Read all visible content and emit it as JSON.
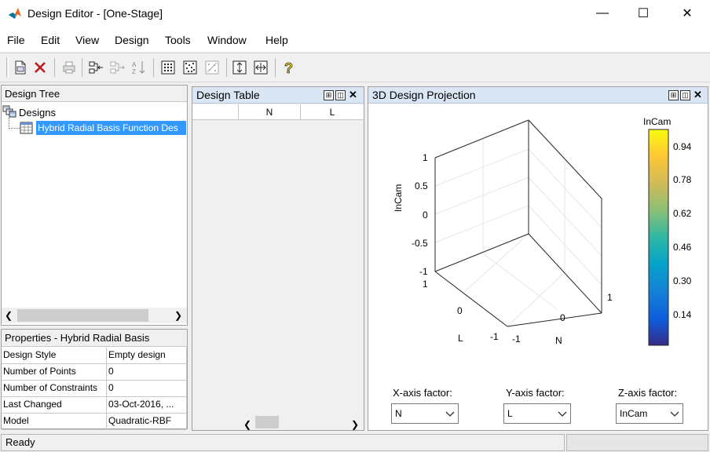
{
  "window": {
    "title": "Design Editor - [One-Stage]",
    "minimize_glyph": "—",
    "maximize_glyph": "☐",
    "close_glyph": "✕"
  },
  "menu": [
    "File",
    "Edit",
    "View",
    "Design",
    "Tools",
    "Window",
    "Help"
  ],
  "toolbar": {
    "icons": [
      "new-design-icon",
      "delete-icon",
      "print-icon",
      "tree-left-icon",
      "tree-right-icon",
      "sort-icon",
      "grid-dots-icon",
      "grid-dots-2-icon",
      "grid-dots-disabled-icon",
      "vertical-resize-icon",
      "horizontal-resize-icon",
      "help-icon"
    ]
  },
  "design_tree": {
    "header": "Design Tree",
    "root_label": "Designs",
    "child_label": "Hybrid Radial Basis Function Des"
  },
  "properties": {
    "header": "Properties - Hybrid Radial Basis",
    "rows": [
      {
        "key": "Design Style",
        "value": "Empty design"
      },
      {
        "key": "Number of Points",
        "value": "0"
      },
      {
        "key": "Number of Constraints",
        "value": "0"
      },
      {
        "key": "Last Changed",
        "value": "03-Oct-2016, ..."
      },
      {
        "key": "Model",
        "value": "Quadratic-RBF"
      }
    ]
  },
  "design_table": {
    "header": "Design Table",
    "columns": [
      "",
      "N",
      "L"
    ]
  },
  "projection": {
    "header": "3D Design Projection",
    "zlabel": "InCam",
    "z_ticks": [
      "1",
      "0.5",
      "0",
      "-0.5",
      "-1"
    ],
    "l_ticks": [
      "1",
      "0",
      "-1"
    ],
    "l_label": "L",
    "n_ticks": [
      "-1",
      "0",
      "1"
    ],
    "n_label": "N",
    "colorbar_title": "InCam",
    "colorbar_ticks": [
      "0.94",
      "0.78",
      "0.62",
      "0.46",
      "0.30",
      "0.14"
    ],
    "x_factor_label": "X-axis factor:",
    "y_factor_label": "Y-axis factor:",
    "z_factor_label": "Z-axis factor:",
    "x_factor_value": "N",
    "y_factor_value": "L",
    "z_factor_value": "InCam"
  },
  "status": {
    "text": "Ready"
  }
}
